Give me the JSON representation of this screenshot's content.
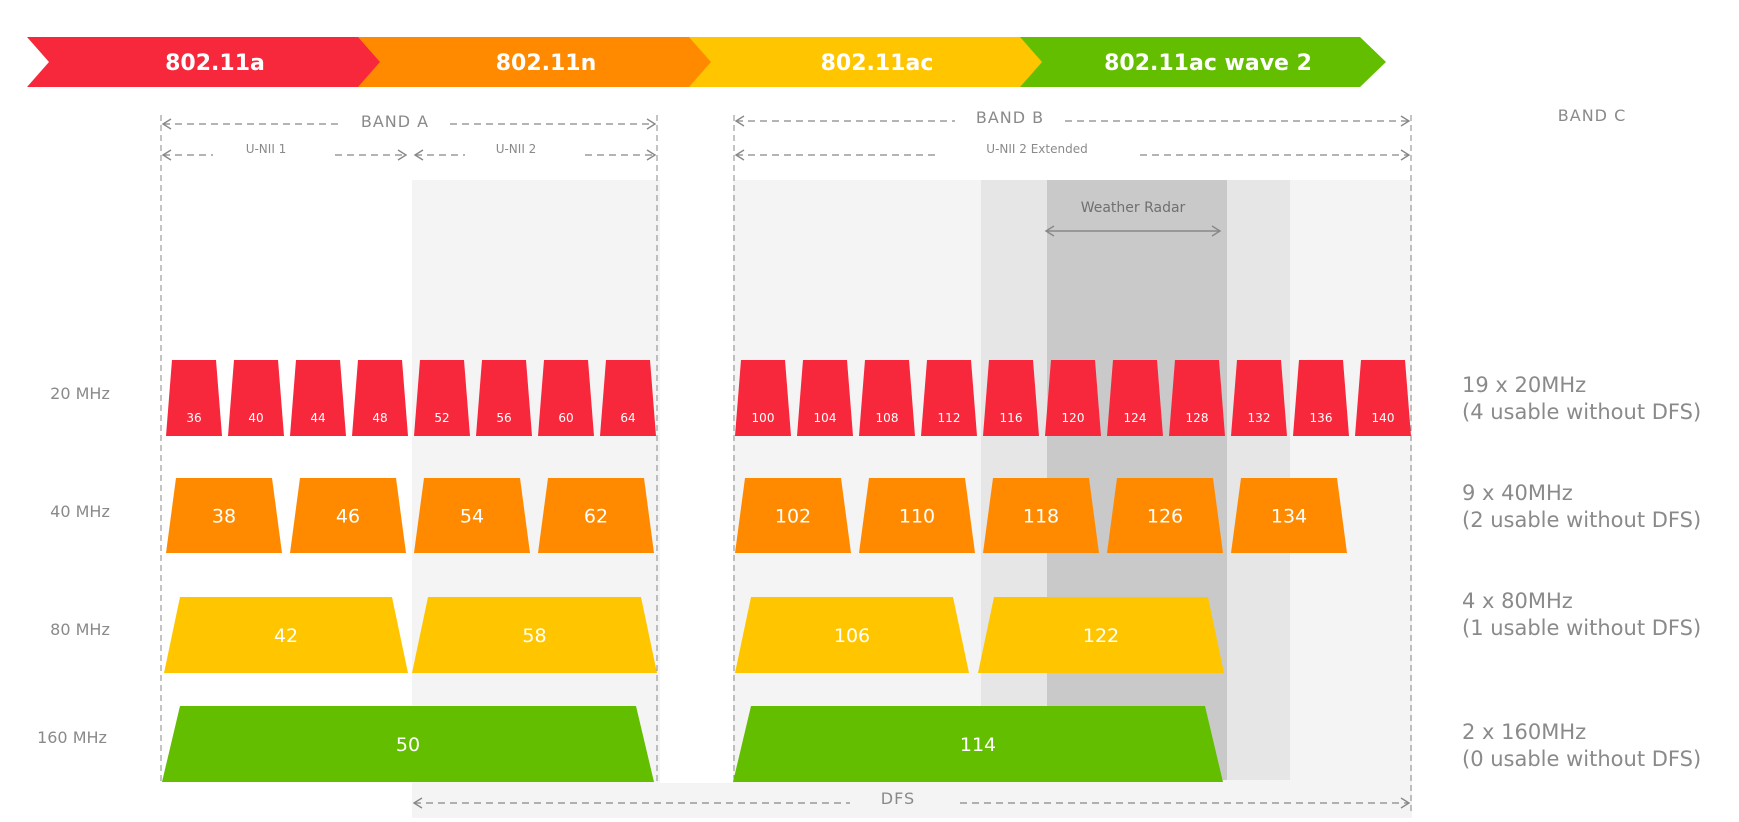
{
  "colors": {
    "red": "#F7283C",
    "orange": "#FF8A00",
    "yellow": "#FFC600",
    "green": "#63BE00",
    "light_gray": "#F4F4F4",
    "mid_gray": "#E6E6E6",
    "dark_gray": "#C9C9C9",
    "text_gray": "#8A8A8A"
  },
  "header": {
    "standards": [
      {
        "label": "802.11a",
        "color": "#F7283C"
      },
      {
        "label": "802.11n",
        "color": "#FF8A00"
      },
      {
        "label": "802.11ac",
        "color": "#FFC600"
      },
      {
        "label": "802.11ac wave 2",
        "color": "#63BE00"
      }
    ]
  },
  "bands": {
    "band_a": "BAND A",
    "band_b": "BAND B",
    "band_c": "BAND C",
    "unii_1": "U-NII 1",
    "unii_2": "U-NII 2",
    "unii_2_ext": "U-NII 2 Extended",
    "weather_radar": "Weather Radar",
    "dfs": "DFS"
  },
  "rows": [
    {
      "width": "20 MHz",
      "summary_line1": "19 x 20MHz",
      "summary_line2": "(4 usable without DFS)",
      "channels": [
        "36",
        "40",
        "44",
        "48",
        "52",
        "56",
        "60",
        "64",
        "100",
        "104",
        "108",
        "112",
        "116",
        "120",
        "124",
        "128",
        "132",
        "136",
        "140"
      ]
    },
    {
      "width": "40 MHz",
      "summary_line1": "9 x 40MHz",
      "summary_line2": "(2 usable without DFS)",
      "channels": [
        "38",
        "46",
        "54",
        "62",
        "102",
        "110",
        "118",
        "126",
        "134"
      ]
    },
    {
      "width": "80 MHz",
      "summary_line1": "4 x 80MHz",
      "summary_line2": "(1 usable without DFS)",
      "channels": [
        "42",
        "58",
        "106",
        "122"
      ]
    },
    {
      "width": "160 MHz",
      "summary_line1": "2 x 160MHz",
      "summary_line2": "(0 usable without DFS)",
      "channels": [
        "50",
        "114"
      ]
    }
  ]
}
